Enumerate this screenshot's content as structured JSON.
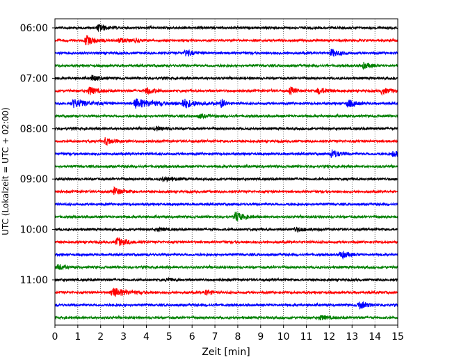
{
  "chart_data": {
    "type": "line",
    "title": "",
    "xlabel": "Zeit  [min]",
    "ylabel": "UTC (Lokalzeit = UTC + 02:00)",
    "xlim": [
      0,
      15
    ],
    "x_ticks": [
      "0",
      "1",
      "2",
      "3",
      "4",
      "5",
      "6",
      "7",
      "8",
      "9",
      "10",
      "11",
      "12",
      "13",
      "14",
      "15"
    ],
    "y_ticks": [
      "06:00",
      "07:00",
      "08:00",
      "09:00",
      "10:00",
      "11:00"
    ],
    "grid": "vertical dotted at each minute",
    "line_interval_minutes": 15,
    "colors": [
      "#000000",
      "#ff0000",
      "#0000ff",
      "#008000"
    ],
    "traces": [
      {
        "start": "06:00",
        "color": "#000000",
        "events": [
          [
            1.9,
            0.6,
            0.35
          ]
        ]
      },
      {
        "start": "06:15",
        "color": "#ff0000",
        "events": [
          [
            1.35,
            0.9,
            0.35
          ],
          [
            2.8,
            0.35,
            0.4
          ],
          [
            3.5,
            0.3,
            0.2
          ]
        ]
      },
      {
        "start": "06:30",
        "color": "#0000ff",
        "events": [
          [
            5.7,
            0.6,
            0.3
          ],
          [
            12.1,
            0.7,
            0.3
          ]
        ]
      },
      {
        "start": "06:45",
        "color": "#008000",
        "events": [
          [
            13.5,
            0.5,
            0.3
          ]
        ]
      },
      {
        "start": "07:00",
        "color": "#000000",
        "events": [
          [
            1.6,
            0.5,
            0.3
          ]
        ]
      },
      {
        "start": "07:15",
        "color": "#ff0000",
        "events": [
          [
            1.5,
            0.7,
            0.3
          ],
          [
            4.0,
            0.6,
            0.3
          ],
          [
            10.3,
            0.7,
            0.2
          ],
          [
            11.5,
            0.5,
            0.4
          ],
          [
            14.3,
            0.5,
            0.4
          ]
        ]
      },
      {
        "start": "07:30",
        "color": "#0000ff",
        "events": [
          [
            0.8,
            0.7,
            0.6
          ],
          [
            3.5,
            0.8,
            0.8
          ],
          [
            5.6,
            0.8,
            0.5
          ],
          [
            7.3,
            0.9,
            0.15
          ],
          [
            12.8,
            0.7,
            0.3
          ]
        ]
      },
      {
        "start": "07:45",
        "color": "#008000",
        "events": [
          [
            6.3,
            0.3,
            0.4
          ]
        ]
      },
      {
        "start": "08:00",
        "color": "#000000",
        "events": [
          [
            4.4,
            0.35,
            0.3
          ]
        ]
      },
      {
        "start": "08:15",
        "color": "#ff0000",
        "events": [
          [
            2.2,
            0.6,
            0.4
          ]
        ]
      },
      {
        "start": "08:30",
        "color": "#0000ff",
        "events": [
          [
            12.1,
            0.8,
            0.3
          ],
          [
            14.8,
            0.6,
            0.2
          ]
        ]
      },
      {
        "start": "08:45",
        "color": "#008000",
        "events": []
      },
      {
        "start": "09:00",
        "color": "#000000",
        "events": [
          [
            4.7,
            0.35,
            0.5
          ]
        ]
      },
      {
        "start": "09:15",
        "color": "#ff0000",
        "events": [
          [
            2.6,
            0.7,
            0.3
          ]
        ]
      },
      {
        "start": "09:30",
        "color": "#0000ff",
        "events": []
      },
      {
        "start": "09:45",
        "color": "#008000",
        "events": [
          [
            7.9,
            0.9,
            0.3
          ]
        ]
      },
      {
        "start": "10:00",
        "color": "#000000",
        "events": [
          [
            4.5,
            0.3,
            0.3
          ],
          [
            10.5,
            0.35,
            0.5
          ]
        ]
      },
      {
        "start": "10:15",
        "color": "#ff0000",
        "events": [
          [
            2.7,
            0.8,
            0.4
          ]
        ]
      },
      {
        "start": "10:30",
        "color": "#0000ff",
        "events": [
          [
            12.5,
            0.7,
            0.3
          ]
        ]
      },
      {
        "start": "10:45",
        "color": "#008000",
        "events": [
          [
            0.15,
            0.6,
            0.2
          ]
        ]
      },
      {
        "start": "11:00",
        "color": "#000000",
        "events": [
          [
            4.9,
            0.35,
            0.2
          ]
        ]
      },
      {
        "start": "11:15",
        "color": "#ff0000",
        "events": [
          [
            2.5,
            0.8,
            0.6
          ],
          [
            6.6,
            0.6,
            0.2
          ]
        ]
      },
      {
        "start": "11:30",
        "color": "#0000ff",
        "events": [
          [
            13.3,
            0.7,
            0.3
          ]
        ]
      },
      {
        "start": "11:45",
        "color": "#008000",
        "events": [
          [
            11.6,
            0.4,
            0.3
          ]
        ]
      }
    ]
  }
}
